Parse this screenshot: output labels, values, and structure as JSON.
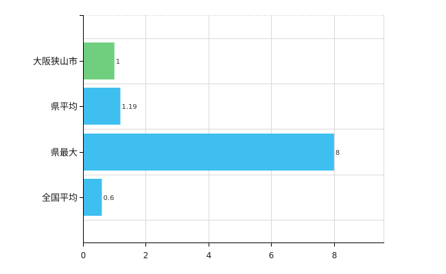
{
  "chart_data": {
    "type": "bar",
    "orientation": "horizontal",
    "categories": [
      "大阪狭山市",
      "県平均",
      "県最大",
      "全国平均"
    ],
    "values": [
      1,
      1.19,
      8,
      0.6
    ],
    "value_labels": [
      "1",
      "1.19",
      "8",
      "0.6"
    ],
    "bar_colors": [
      "#6fcf7f",
      "#3fbff0",
      "#3fbff0",
      "#3fbff0"
    ],
    "xlim": [
      0,
      9.6
    ],
    "xticks": [
      0,
      2,
      4,
      6,
      8
    ],
    "xtick_labels": [
      "0",
      "2",
      "4",
      "6",
      "8"
    ],
    "grid": true,
    "title": "",
    "xlabel": "",
    "ylabel": ""
  }
}
